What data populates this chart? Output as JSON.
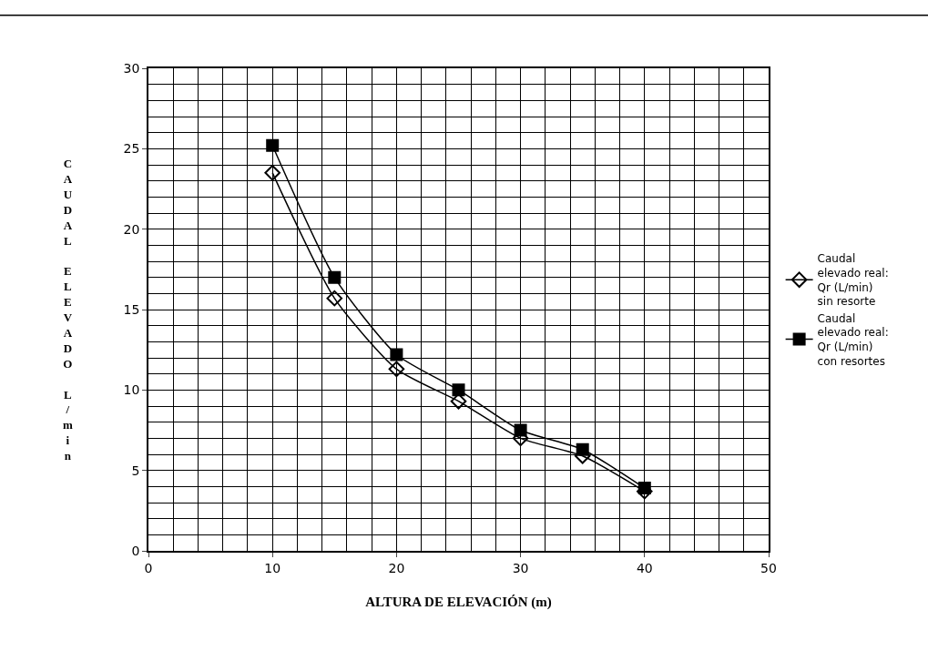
{
  "chart_data": {
    "type": "line",
    "xlabel": "ALTURA DE ELEVACIÓN (m)",
    "ylabel": "CAUDAL ELEVADO L/min",
    "x": [
      10,
      15,
      20,
      25,
      30,
      35,
      40
    ],
    "series": [
      {
        "name": "Caudal elevado real: Qr (L/min) sin resorte",
        "color": "#000000",
        "marker": "diamond",
        "values": [
          23.5,
          15.7,
          11.3,
          9.3,
          7.0,
          5.9,
          3.7
        ]
      },
      {
        "name": "Caudal elevado real: Qr (L/min) con resortes",
        "color": "#000000",
        "marker": "square",
        "values": [
          25.2,
          17.0,
          12.2,
          10.0,
          7.5,
          6.3,
          3.9
        ]
      }
    ],
    "xlim": [
      0,
      50
    ],
    "xticks": [
      0,
      10,
      20,
      30,
      40,
      50
    ],
    "ylim": [
      0,
      30
    ],
    "yticks": [
      0,
      5,
      10,
      15,
      20,
      25,
      30
    ],
    "grid": true,
    "legend": "right",
    "line_style": "solid"
  }
}
